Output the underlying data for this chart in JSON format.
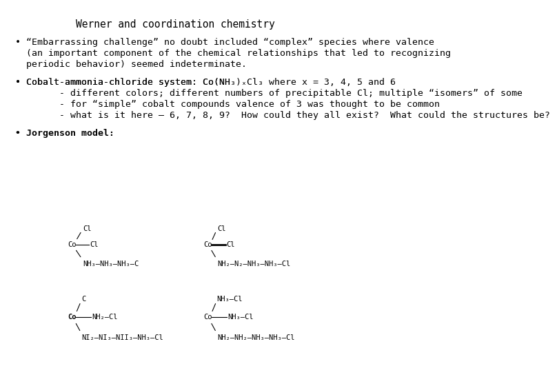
{
  "title": "Werner and coordination chemistry",
  "background": "#ffffff",
  "text_color": "#000000",
  "font_family": "DejaVu Sans",
  "title_fontsize": 11,
  "body_fontsize": 10,
  "bullet1_line1": "• “Embarrassing challenge” no doubt included “complex” species where valence",
  "bullet1_line2": "  (an important component of the chemical relationships that led to recognizing",
  "bullet1_line3": "  periodic behavior) seemed indeterminate.",
  "bullet2_line1": "• Cobalt-ammonia-chloride system: Co(NH₃)ₓCl₃ where x = 3, 4, 5 and 6",
  "bullet2_line1b": "• Cobalt-ammonia-chloride system: Co(NH",
  "bullet2_line2": "        - different colors; different numbers of precipitable Cl; multiple “isomers” of some",
  "bullet2_line3": "        - for “simple” cobalt compounds valence of 3 was thought to be common",
  "bullet2_line4": "        - what is it here — 6, 7, 8, 9?  How could they all exist?  What could the structures be?",
  "bullet3": "• Jorgenson model:"
}
